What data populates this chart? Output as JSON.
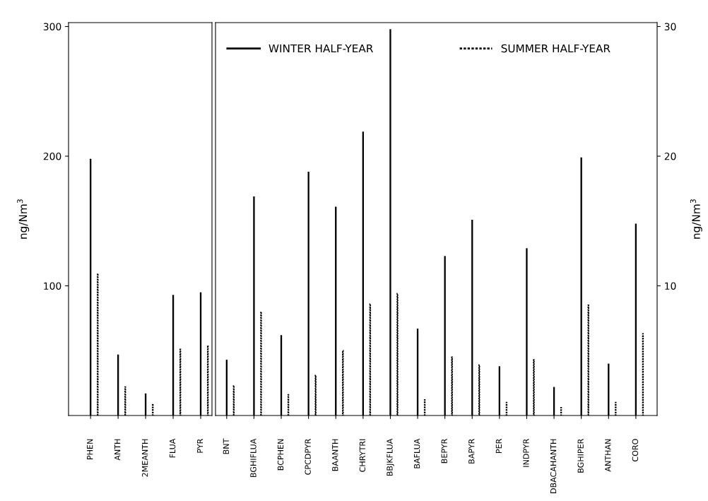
{
  "chart_data": [
    {
      "type": "bar",
      "categories": [
        "PHEN",
        "ANTH",
        "2MEANTH",
        "FLUA",
        "PYR"
      ],
      "ylim": [
        0,
        303
      ],
      "yticks": [
        100,
        200,
        300
      ],
      "ylabel": "ng/Nm$^{3}$",
      "series": [
        {
          "color": "#000000",
          "line_style": "solid",
          "values": [
            198,
            47,
            17,
            93,
            95
          ]
        },
        {
          "color": "#000000",
          "line_style": "dotted",
          "values": [
            109.5,
            22,
            9,
            51,
            54
          ]
        }
      ]
    },
    {
      "type": "bar",
      "categories": [
        "BNT",
        "BGHIFLUA",
        "BCPHEN",
        "CPCDPYR",
        "BAANTH",
        "CHRYTRI",
        "BBJKFLUA",
        "BAFLUA",
        "BEPYR",
        "BAPYR",
        "PER",
        "INDPYR",
        "DBACAHANTH",
        "BGHIPER",
        "ANTHAN",
        "CORO"
      ],
      "y2lim": [
        0,
        30.3
      ],
      "y2ticks": [
        10,
        20,
        30
      ],
      "y2label": "ng/Nm$^{3}$",
      "legend": "top",
      "series": [
        {
          "name": "WINTER HALF-YEAR",
          "color": "#000000",
          "line_style": "solid",
          "axis": "y2",
          "values": [
            4.3,
            16.9,
            6.2,
            18.8,
            16.1,
            21.9,
            29.8,
            6.7,
            12.3,
            15.1,
            3.8,
            12.9,
            2.2,
            19.9,
            4.0,
            14.8
          ]
        },
        {
          "name": "SUMMER HALF-YEAR",
          "color": "#000000",
          "line_style": "dotted",
          "axis": "y2",
          "values": [
            2.3,
            8.0,
            1.6,
            3.1,
            5.0,
            8.6,
            9.4,
            1.2,
            4.5,
            3.9,
            1.0,
            4.3,
            0.6,
            8.5,
            1.0,
            6.3
          ]
        }
      ]
    }
  ]
}
